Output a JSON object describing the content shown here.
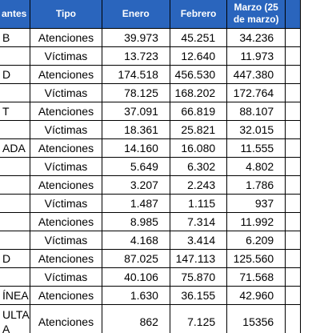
{
  "header": {
    "col_category": "antes",
    "col_tipo": "Tipo",
    "col_enero": "Enero",
    "col_febrero": "Febrero",
    "col_marzo": "Marzo (25 de marzo)"
  },
  "rows": [
    {
      "cat": "B",
      "tipo": "Atenciones",
      "enero": "39.973",
      "febrero": "45.251",
      "marzo": "34.236"
    },
    {
      "cat": "",
      "tipo": "Víctimas",
      "enero": "13.723",
      "febrero": "12.640",
      "marzo": "11.973"
    },
    {
      "cat": "D",
      "tipo": "Atenciones",
      "enero": "174.518",
      "febrero": "456.530",
      "marzo": "447.380"
    },
    {
      "cat": "",
      "tipo": "Víctimas",
      "enero": "78.125",
      "febrero": "168.202",
      "marzo": "172.764"
    },
    {
      "cat": "T",
      "tipo": "Atenciones",
      "enero": "37.091",
      "febrero": "66.819",
      "marzo": "88.107"
    },
    {
      "cat": "",
      "tipo": "Víctimas",
      "enero": "18.361",
      "febrero": "25.821",
      "marzo": "32.015"
    },
    {
      "cat": "ADA",
      "tipo": "Atenciones",
      "enero": "14.160",
      "febrero": "16.080",
      "marzo": "11.555"
    },
    {
      "cat": "",
      "tipo": "Víctimas",
      "enero": "5.649",
      "febrero": "6.302",
      "marzo": "4.802"
    },
    {
      "cat": "",
      "tipo": "Atenciones",
      "enero": "3.207",
      "febrero": "2.243",
      "marzo": "1.786"
    },
    {
      "cat": "",
      "tipo": "Víctimas",
      "enero": "1.487",
      "febrero": "1.115",
      "marzo": "937"
    },
    {
      "cat": "",
      "tipo": "Atenciones",
      "enero": "8.985",
      "febrero": "7.314",
      "marzo": "11.992"
    },
    {
      "cat": "",
      "tipo": "Víctimas",
      "enero": "4.168",
      "febrero": "3.414",
      "marzo": "6.209"
    },
    {
      "cat": "D",
      "tipo": "Atenciones",
      "enero": "87.025",
      "febrero": "147.113",
      "marzo": "125.560"
    },
    {
      "cat": "",
      "tipo": "Víctimas",
      "enero": "40.106",
      "febrero": "75.870",
      "marzo": "71.568"
    },
    {
      "cat": "ÍNEA",
      "tipo": "Atenciones",
      "enero": "1.630",
      "febrero": "36.155",
      "marzo": "42.960"
    },
    {
      "cat": "ULTA A",
      "tipo": "Atenciones",
      "enero": "862",
      "febrero": "7.125",
      "marzo": "15356"
    }
  ]
}
